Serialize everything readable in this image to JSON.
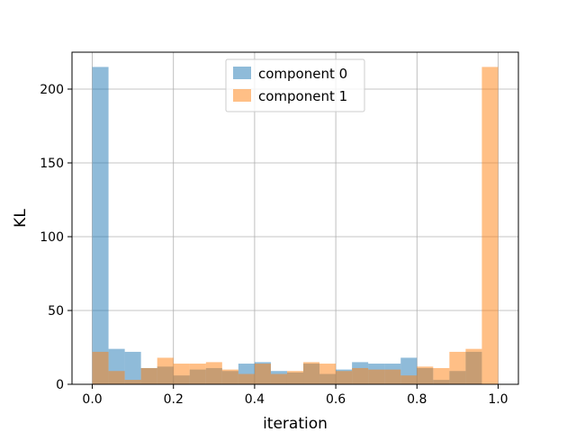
{
  "chart_data": {
    "type": "bar",
    "subtype": "overlapping-histogram",
    "title": "",
    "xlabel": "iteration",
    "ylabel": "KL",
    "xlim": [
      -0.05,
      1.05
    ],
    "ylim": [
      0,
      225
    ],
    "xticks": [
      0.0,
      0.2,
      0.4,
      0.6,
      0.8,
      1.0
    ],
    "xtick_labels": [
      "0.0",
      "0.2",
      "0.4",
      "0.6",
      "0.8",
      "1.0"
    ],
    "yticks": [
      0,
      50,
      100,
      150,
      200
    ],
    "ytick_labels": [
      "0",
      "50",
      "100",
      "150",
      "200"
    ],
    "grid": true,
    "legend_position": "top-center",
    "bin_start": 0.0,
    "bin_width": 0.04,
    "series": [
      {
        "name": "component 0",
        "color": "#1f77b4",
        "alpha": 0.5,
        "values": [
          215,
          24,
          22,
          11,
          12,
          6,
          10,
          11,
          9,
          14,
          15,
          9,
          8,
          14,
          7,
          10,
          15,
          14,
          14,
          18,
          11,
          3,
          9,
          22,
          0
        ]
      },
      {
        "name": "component 1",
        "color": "#ff7f0e",
        "alpha": 0.5,
        "values": [
          22,
          9,
          3,
          11,
          18,
          14,
          14,
          15,
          10,
          7,
          14,
          7,
          9,
          15,
          14,
          9,
          11,
          10,
          10,
          6,
          12,
          11,
          22,
          24,
          215
        ]
      }
    ]
  }
}
